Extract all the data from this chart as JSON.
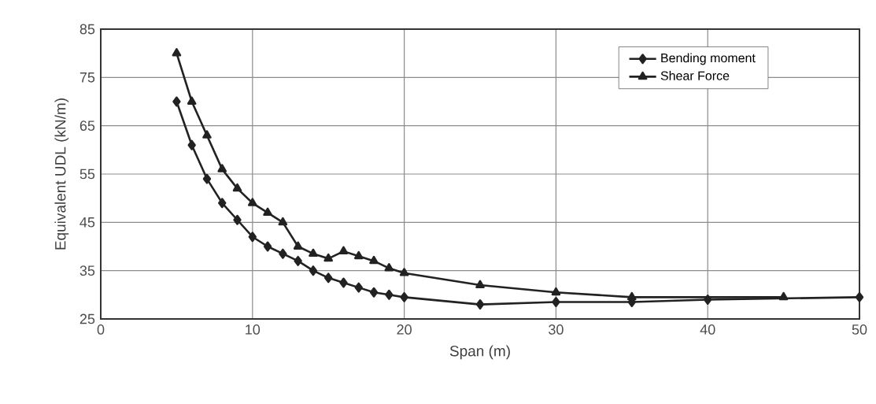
{
  "chart_data": {
    "type": "line",
    "xlabel": "Span (m)",
    "ylabel": "Equivalent UDL (kN/m)",
    "xlim": [
      0,
      50
    ],
    "xticks": [
      0,
      10,
      20,
      30,
      40,
      50
    ],
    "ylim": [
      25,
      85
    ],
    "yticks": [
      25,
      35,
      45,
      55,
      65,
      75,
      85
    ],
    "grid": true,
    "legend": "top right",
    "line_style": "solid",
    "series": [
      {
        "name": "Bending moment",
        "color": "#222222",
        "marker": "diamond",
        "x": [
          5,
          6,
          7,
          8,
          9,
          10,
          11,
          12,
          13,
          14,
          15,
          16,
          17,
          18,
          19,
          20,
          25,
          30,
          35,
          40,
          45,
          50
        ],
        "values": [
          70,
          61,
          54,
          49,
          45.5,
          42,
          40,
          38.5,
          37,
          35,
          33.5,
          32.5,
          31.5,
          30.5,
          30,
          29.5,
          28,
          28.5,
          28.5,
          29,
          null,
          29.5
        ]
      },
      {
        "name": "Shear Force",
        "color": "#222222",
        "marker": "triangle",
        "x": [
          5,
          6,
          7,
          8,
          9,
          10,
          11,
          12,
          13,
          14,
          15,
          16,
          17,
          18,
          19,
          20,
          25,
          30,
          35,
          40,
          45
        ],
        "values": [
          80,
          70,
          63,
          56,
          52,
          49,
          47,
          45,
          40,
          38.5,
          37.5,
          39,
          38,
          37,
          35.5,
          34.5,
          32,
          30.5,
          29.5,
          null,
          29.5
        ]
      }
    ]
  }
}
